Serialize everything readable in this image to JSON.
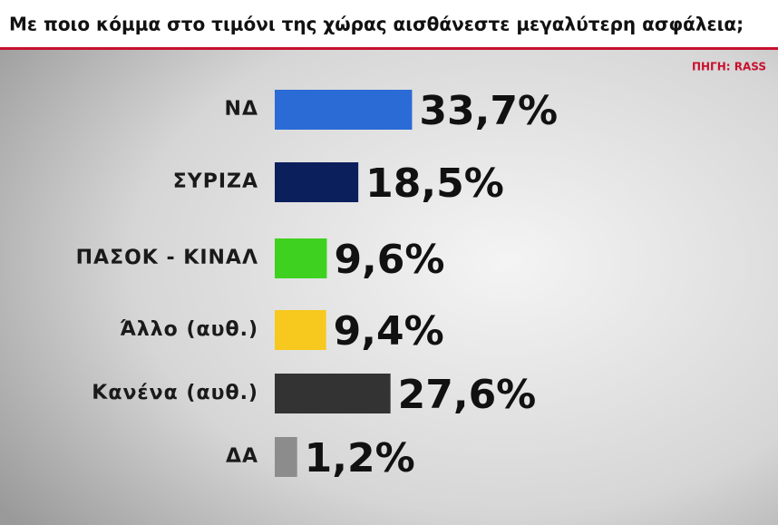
{
  "chart_data": {
    "type": "barh",
    "title": "Με ποιο κόμμα στο τιμόνι της χώρας αισθάνεστε μεγαλύτερη ασφάλεια;",
    "source": "ΠΗΓΗ: RASS",
    "categories": [
      "ΝΔ",
      "ΣΥΡΙΖΑ",
      "ΠΑΣΟΚ - ΚΙΝΑΛ",
      "Άλλο (αυθ.)",
      "Κανένα (αυθ.)",
      "ΔΑ"
    ],
    "values": [
      33.7,
      18.5,
      9.6,
      9.4,
      27.6,
      1.2
    ],
    "value_labels": [
      "33,7%",
      "18,5%",
      "9,6%",
      "9,4%",
      "27,6%",
      "1,2%"
    ],
    "colors": [
      "#2a6bd6",
      "#0b1f5c",
      "#3fd11f",
      "#f7c81e",
      "#333333",
      "#8c8c8c"
    ]
  }
}
